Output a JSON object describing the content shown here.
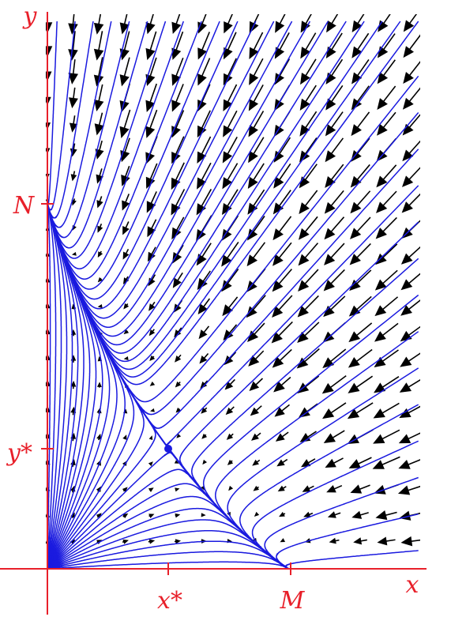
{
  "labels": {
    "y_axis": "y",
    "N": "N",
    "y_star": "y*",
    "x_star": "x*",
    "M": "M",
    "x_axis": "x"
  }
}
